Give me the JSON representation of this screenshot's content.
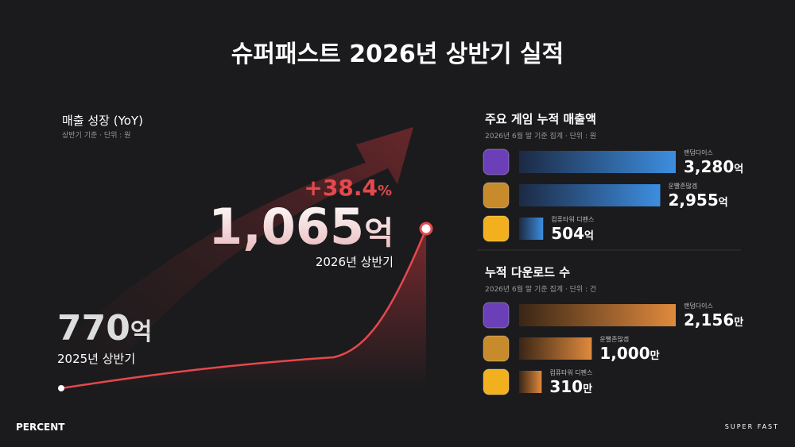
{
  "title": "슈퍼패스트 2026년 상반기 실적",
  "growth": {
    "title": "매출 성장 (YoY)",
    "subtitle": "상반기 기준 · 단위 : 원",
    "change": "+38.4",
    "change_unit": "%",
    "end_value": "1,065",
    "end_unit": "억",
    "end_label": "2026년 상반기",
    "start_value": "770",
    "start_unit": "억",
    "start_label": "2025년 상반기"
  },
  "revenue": {
    "title": "주요 게임 누적 매출액",
    "subtitle": "2026년 6월 말 기준 집계 · 단위 : 원",
    "color": "#3d8ee0",
    "games": [
      {
        "name": "랜덤다이스",
        "value": 3280,
        "value_label": "3,280",
        "unit": "억"
      },
      {
        "name": "운빨존많겜",
        "value": 2955,
        "value_label": "2,955",
        "unit": "억"
      },
      {
        "name": "컴퓨타워 디펜스",
        "value": 504,
        "value_label": "504",
        "unit": "억"
      }
    ]
  },
  "downloads": {
    "title": "누적 다운로드 수",
    "subtitle": "2026년 6월 말 기준 집계 · 단위 : 건",
    "color": "#e08a3d",
    "games": [
      {
        "name": "랜덤다이스",
        "value": 2156,
        "value_label": "2,156",
        "unit": "만"
      },
      {
        "name": "운빨존많겜",
        "value": 1000,
        "value_label": "1,000",
        "unit": "만"
      },
      {
        "name": "컴퓨타워 디펜스",
        "value": 310,
        "value_label": "310",
        "unit": "만"
      }
    ]
  },
  "footer": {
    "left_logo": "PERCENT",
    "right_logo": "SUPER FAST"
  }
}
